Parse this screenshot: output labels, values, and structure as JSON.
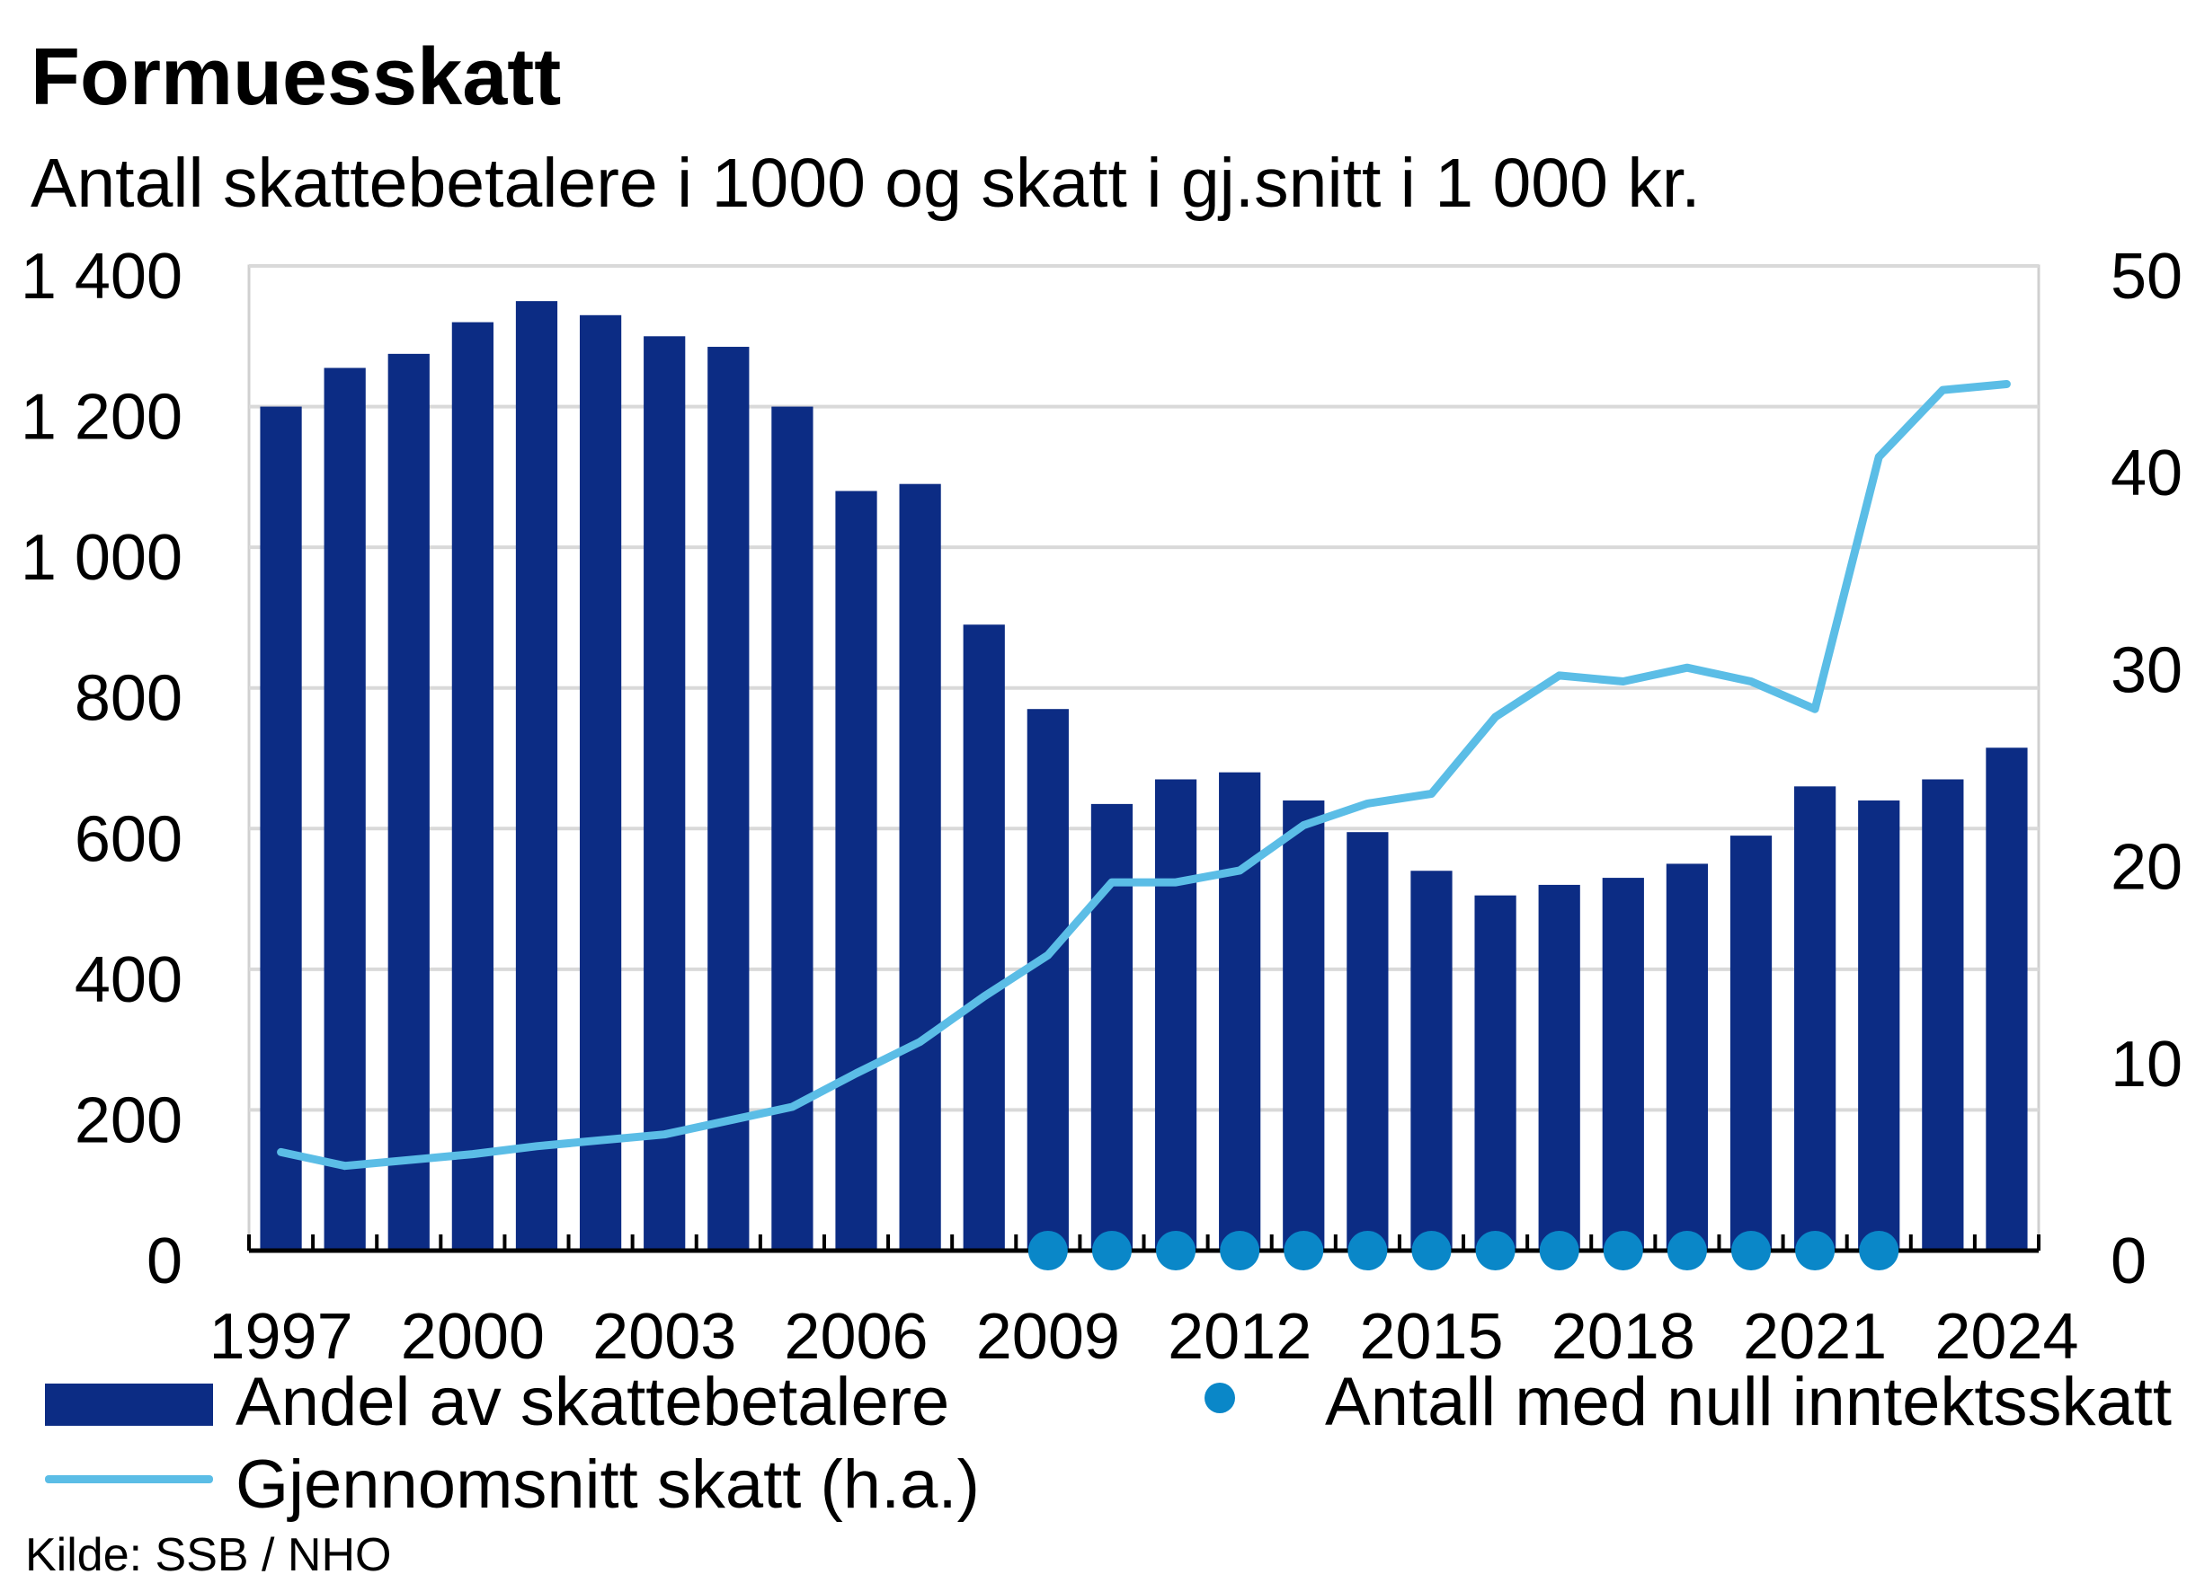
{
  "chart_data": {
    "type": "bar",
    "title": "Formuesskatt",
    "subtitle": "Antall skattebetalere i 1000 og skatt i gj.snitt i 1 000 kr.",
    "x": [
      1997,
      1998,
      1999,
      2000,
      2001,
      2002,
      2003,
      2004,
      2005,
      2006,
      2007,
      2008,
      2009,
      2010,
      2011,
      2012,
      2013,
      2014,
      2015,
      2016,
      2017,
      2018,
      2019,
      2020,
      2021,
      2022,
      2023,
      2024
    ],
    "x_ticks": [
      1997,
      2000,
      2003,
      2006,
      2009,
      2012,
      2015,
      2018,
      2021,
      2024
    ],
    "x_tick_labels": [
      "1997",
      "2000",
      "2003",
      "2006",
      "2009",
      "2012",
      "2015",
      "2018",
      "2021",
      "2024"
    ],
    "y_left": {
      "ylim": [
        0,
        1400
      ],
      "ticks": [
        0,
        200,
        400,
        600,
        800,
        1000,
        1200,
        1400
      ],
      "tick_labels": [
        "0",
        "200",
        "400",
        "600",
        "800",
        "1 000",
        "1 200",
        "1 400"
      ]
    },
    "y_right": {
      "ylim": [
        0,
        50
      ],
      "ticks": [
        0,
        10,
        20,
        30,
        40,
        50
      ],
      "tick_labels": [
        "0",
        "10",
        "20",
        "30",
        "40",
        "50"
      ]
    },
    "grid": true,
    "legend": "bottom",
    "series": [
      {
        "name": "Andel av skattebetalere",
        "type": "bar",
        "axis": "left",
        "color": "#0c2c84",
        "values": [
          1200,
          1255,
          1275,
          1320,
          1350,
          1330,
          1300,
          1285,
          1200,
          1080,
          1090,
          890,
          770,
          635,
          670,
          680,
          640,
          595,
          540,
          505,
          520,
          530,
          550,
          590,
          660,
          640,
          670,
          715
        ]
      },
      {
        "name": "Antall med null inntektsskatt",
        "type": "scatter",
        "axis": "left",
        "color": "#0a87c8",
        "values": [
          null,
          null,
          null,
          null,
          null,
          null,
          null,
          null,
          null,
          null,
          null,
          null,
          0,
          0,
          0,
          0,
          0,
          0,
          0,
          0,
          0,
          0,
          0,
          0,
          0,
          0,
          null,
          null
        ]
      },
      {
        "name": "Gjennomsnitt skatt (h.a.)",
        "type": "line",
        "axis": "right",
        "color": "#5bbde6",
        "values": [
          5.0,
          4.3,
          4.6,
          4.9,
          5.3,
          5.6,
          5.9,
          6.6,
          7.3,
          9.0,
          10.6,
          12.9,
          15.0,
          18.7,
          18.7,
          19.3,
          21.6,
          22.7,
          23.2,
          27.1,
          29.2,
          28.9,
          29.6,
          28.9,
          27.5,
          40.3,
          43.7,
          44.0
        ]
      }
    ],
    "source": "Kilde: SSB / NHO"
  }
}
